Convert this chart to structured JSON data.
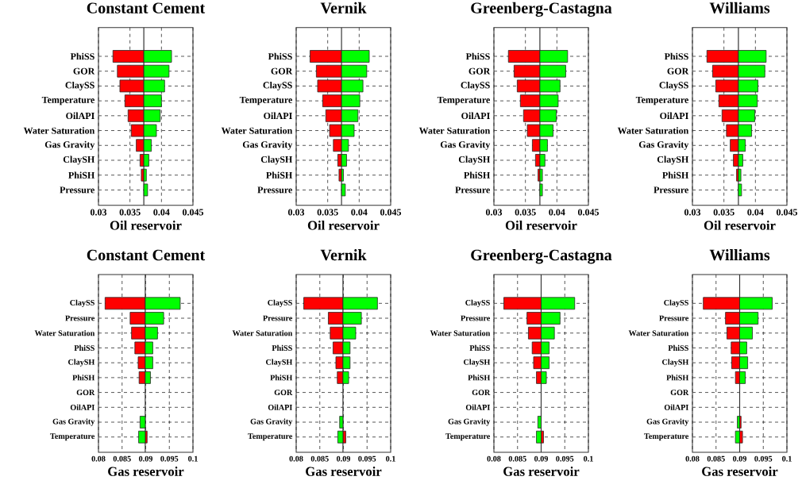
{
  "chart_data": [
    {
      "type": "bar",
      "orientation": "horizontal",
      "title": "Constant Cement",
      "xlabel": "Oil reservoir",
      "grid": true,
      "categories": [
        "PhiSS",
        "GOR",
        "ClaySS",
        "Temperature",
        "OilAPI",
        "Water Saturation",
        "Gas Gravity",
        "ClaySH",
        "PhiSH",
        "Pressure"
      ],
      "xlim": [
        0.03,
        0.045
      ],
      "xticks": [
        0.03,
        0.035,
        0.04,
        0.045
      ],
      "ref_lines": [
        {
          "axis": "x",
          "value": 0.0372
        }
      ],
      "series": [
        {
          "color": "#ff0000",
          "base": [
            0.0372,
            0.0372,
            0.0372,
            0.0372,
            0.0372,
            0.0372,
            0.0372,
            0.0372,
            0.0372,
            null
          ],
          "values": [
            -0.0049,
            -0.0042,
            -0.0038,
            -0.003,
            -0.0025,
            -0.002,
            -0.0012,
            -0.0006,
            -0.0004,
            null
          ]
        },
        {
          "color": "#00ff00",
          "base": [
            0.0372,
            0.0372,
            0.0372,
            0.0372,
            0.0372,
            0.0372,
            0.0372,
            0.0372,
            0.0372,
            0.0372
          ],
          "values": [
            0.0044,
            0.004,
            0.0033,
            0.0028,
            0.0026,
            0.002,
            0.0012,
            0.0008,
            0.0004,
            0.0006
          ]
        }
      ]
    },
    {
      "type": "bar",
      "orientation": "horizontal",
      "title": "Vernik",
      "xlabel": "Oil reservoir",
      "grid": true,
      "categories": [
        "PhiSS",
        "GOR",
        "ClaySS",
        "Temperature",
        "OilAPI",
        "Water Saturation",
        "Gas Gravity",
        "ClaySH",
        "PhiSH",
        "Pressure"
      ],
      "xlim": [
        0.03,
        0.045
      ],
      "xticks": [
        0.03,
        0.035,
        0.04,
        0.045
      ],
      "ref_lines": [
        {
          "axis": "x",
          "value": 0.0372
        }
      ],
      "series": [
        {
          "color": "#ff0000",
          "base": [
            0.0372,
            0.0372,
            0.0372,
            0.0372,
            0.0372,
            0.0372,
            0.0372,
            0.0372,
            0.0372,
            null
          ],
          "values": [
            -0.005,
            -0.004,
            -0.0038,
            -0.003,
            -0.0025,
            -0.0019,
            -0.0013,
            -0.0006,
            -0.0004,
            null
          ]
        },
        {
          "color": "#00ff00",
          "base": [
            0.0372,
            0.0372,
            0.0372,
            0.0372,
            0.0372,
            0.0372,
            0.0372,
            0.0372,
            0.0372,
            0.0372
          ],
          "values": [
            0.0044,
            0.004,
            0.0034,
            0.0029,
            0.0026,
            0.002,
            0.0011,
            0.0008,
            0.0003,
            0.0006
          ]
        }
      ]
    },
    {
      "type": "bar",
      "orientation": "horizontal",
      "title": "Greenberg-Castagna",
      "xlabel": "Oil reservoir",
      "grid": true,
      "categories": [
        "PhiSS",
        "GOR",
        "ClaySS",
        "Temperature",
        "OilAPI",
        "Water Saturation",
        "Gas Gravity",
        "ClaySH",
        "PhiSH",
        "Pressure"
      ],
      "xlim": [
        0.03,
        0.045
      ],
      "xticks": [
        0.03,
        0.035,
        0.04,
        0.045
      ],
      "ref_lines": [
        {
          "axis": "x",
          "value": 0.0373
        }
      ],
      "series": [
        {
          "color": "#ff0000",
          "base": [
            0.0373,
            0.0373,
            0.0373,
            0.0373,
            0.0373,
            0.0373,
            0.0373,
            0.0373,
            0.0373,
            null
          ],
          "values": [
            -0.005,
            -0.0041,
            -0.0036,
            -0.0031,
            -0.0026,
            -0.002,
            -0.0012,
            -0.0007,
            -0.0003,
            null
          ]
        },
        {
          "color": "#00ff00",
          "base": [
            0.0373,
            0.0373,
            0.0373,
            0.0373,
            0.0373,
            0.0373,
            0.0373,
            0.0373,
            0.0373,
            0.0373
          ],
          "values": [
            0.0044,
            0.0041,
            0.0032,
            0.0029,
            0.0026,
            0.0021,
            0.0012,
            0.0008,
            0.0004,
            0.0004
          ]
        }
      ]
    },
    {
      "type": "bar",
      "orientation": "horizontal",
      "title": "Williams",
      "xlabel": "Oil reservoir",
      "grid": true,
      "categories": [
        "PhiSS",
        "GOR",
        "ClaySS",
        "Temperature",
        "OilAPI",
        "Water Saturation",
        "Gas Gravity",
        "ClaySH",
        "PhiSH",
        "Pressure"
      ],
      "xlim": [
        0.03,
        0.045
      ],
      "xticks": [
        0.03,
        0.035,
        0.04,
        0.045
      ],
      "ref_lines": [
        {
          "axis": "x",
          "value": 0.0373
        }
      ],
      "series": [
        {
          "color": "#ff0000",
          "base": [
            0.0373,
            0.0373,
            0.0373,
            0.0373,
            0.0373,
            0.0373,
            0.0373,
            0.0373,
            0.0373,
            null
          ],
          "values": [
            -0.005,
            -0.0041,
            -0.0036,
            -0.0031,
            -0.0026,
            -0.0019,
            -0.0013,
            -0.0008,
            -0.0003,
            null
          ]
        },
        {
          "color": "#00ff00",
          "base": [
            0.0373,
            0.0373,
            0.0373,
            0.0373,
            0.0373,
            0.0373,
            0.0373,
            0.0373,
            0.0373,
            0.0373
          ],
          "values": [
            0.0044,
            0.0042,
            0.0031,
            0.003,
            0.0026,
            0.0021,
            0.0011,
            0.0007,
            0.0004,
            0.0005
          ]
        }
      ]
    },
    {
      "type": "bar",
      "orientation": "horizontal",
      "title": "Constant Cement",
      "xlabel": "Gas reservoir",
      "grid": true,
      "categories": [
        "ClaySS",
        "Pressure",
        "Water Saturation",
        "PhiSS",
        "ClaySH",
        "PhiSH",
        "GOR",
        "OilAPI",
        "Gas Gravity",
        "Temperature"
      ],
      "xlim": [
        0.08,
        0.1
      ],
      "xticks": [
        0.08,
        0.085,
        0.09,
        0.095,
        0.1
      ],
      "ref_lines": [
        {
          "axis": "x",
          "value": 0.0899
        }
      ],
      "series": [
        {
          "color": "#ff0000",
          "base": [
            0.0899,
            0.0899,
            0.0899,
            0.0899,
            0.0899,
            0.0899,
            null,
            null,
            null,
            0.0899
          ],
          "values": [
            -0.0085,
            -0.0032,
            -0.0029,
            -0.0022,
            -0.0015,
            -0.0013,
            null,
            null,
            null,
            0.0004
          ]
        },
        {
          "color": "#00ff00",
          "base": [
            0.0899,
            0.0899,
            0.0899,
            0.0899,
            0.0899,
            0.0899,
            null,
            null,
            0.0899,
            0.0899
          ],
          "values": [
            0.0074,
            0.0039,
            0.0026,
            0.0016,
            0.0016,
            0.0011,
            null,
            null,
            -0.0011,
            -0.0014
          ]
        }
      ]
    },
    {
      "type": "bar",
      "orientation": "horizontal",
      "title": "Vernik",
      "xlabel": "Gas reservoir",
      "grid": true,
      "categories": [
        "ClaySS",
        "Pressure",
        "Water Saturation",
        "PhiSS",
        "ClaySH",
        "PhiSH",
        "GOR",
        "OilAPI",
        "Gas Gravity",
        "Temperature"
      ],
      "xlim": [
        0.08,
        0.1
      ],
      "xticks": [
        0.08,
        0.085,
        0.09,
        0.095,
        0.1
      ],
      "ref_lines": [
        {
          "axis": "x",
          "value": 0.0899
        }
      ],
      "series": [
        {
          "color": "#ff0000",
          "base": [
            0.0899,
            0.0899,
            0.0899,
            0.0899,
            0.0899,
            0.0899,
            null,
            null,
            null,
            0.0899
          ],
          "values": [
            -0.0083,
            -0.0031,
            -0.0027,
            -0.0021,
            -0.0015,
            -0.0012,
            null,
            null,
            null,
            0.0006
          ]
        },
        {
          "color": "#00ff00",
          "base": [
            0.0899,
            0.0899,
            0.0899,
            0.0899,
            0.0899,
            0.0899,
            null,
            null,
            0.0899,
            0.0899
          ],
          "values": [
            0.0073,
            0.0039,
            0.0027,
            0.0015,
            0.0015,
            0.0012,
            null,
            null,
            -0.0007,
            -0.0011
          ]
        }
      ]
    },
    {
      "type": "bar",
      "orientation": "horizontal",
      "title": "Greenberg-Castagna",
      "xlabel": "Gas reservoir",
      "grid": true,
      "categories": [
        "ClaySS",
        "Pressure",
        "Water Saturation",
        "PhiSS",
        "ClaySH",
        "PhiSH",
        "GOR",
        "OilAPI",
        "Gas Gravity",
        "Temperature"
      ],
      "xlim": [
        0.08,
        0.1
      ],
      "xticks": [
        0.08,
        0.085,
        0.09,
        0.095,
        0.1
      ],
      "ref_lines": [
        {
          "axis": "x",
          "value": 0.09
        }
      ],
      "series": [
        {
          "color": "#ff0000",
          "base": [
            0.09,
            0.09,
            0.09,
            0.09,
            0.09,
            0.09,
            null,
            null,
            null,
            0.09
          ],
          "values": [
            -0.0079,
            -0.003,
            -0.0027,
            -0.0019,
            -0.0016,
            -0.001,
            null,
            null,
            null,
            0.0005
          ]
        },
        {
          "color": "#00ff00",
          "base": [
            0.09,
            0.09,
            0.09,
            0.09,
            0.09,
            0.09,
            null,
            null,
            0.09,
            0.09
          ],
          "values": [
            0.0071,
            0.004,
            0.0028,
            0.0017,
            0.0017,
            0.0011,
            null,
            null,
            -0.0007,
            -0.001
          ]
        }
      ]
    },
    {
      "type": "bar",
      "orientation": "horizontal",
      "title": "Williams",
      "xlabel": "Gas reservoir",
      "grid": true,
      "categories": [
        "ClaySS",
        "Pressure",
        "Water Saturation",
        "PhiSS",
        "ClaySH",
        "PhiSH",
        "GOR",
        "OilAPI",
        "Gas Gravity",
        "Temperature"
      ],
      "xlim": [
        0.08,
        0.1
      ],
      "xticks": [
        0.08,
        0.085,
        0.09,
        0.095,
        0.1
      ],
      "ref_lines": [
        {
          "axis": "x",
          "value": 0.09
        }
      ],
      "series": [
        {
          "color": "#ff0000",
          "base": [
            0.09,
            0.09,
            0.09,
            0.09,
            0.09,
            0.09,
            null,
            null,
            0.09,
            0.09
          ],
          "values": [
            -0.0077,
            -0.003,
            -0.0027,
            -0.0018,
            -0.0017,
            -0.0009,
            null,
            null,
            0.0003,
            0.0006
          ]
        },
        {
          "color": "#00ff00",
          "base": [
            0.09,
            0.09,
            0.09,
            0.09,
            0.09,
            0.09,
            null,
            null,
            0.09,
            0.09
          ],
          "values": [
            0.0069,
            0.0039,
            0.0027,
            0.0015,
            0.0017,
            0.0012,
            null,
            null,
            -0.0005,
            -0.0009
          ]
        }
      ]
    }
  ]
}
